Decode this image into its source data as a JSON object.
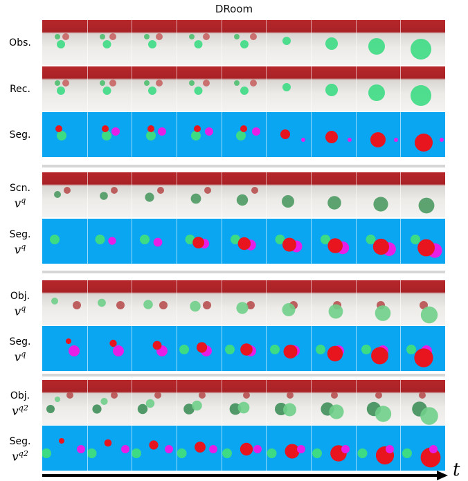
{
  "title": "DRoom",
  "time_label": "t",
  "rows": [
    {
      "key": "obs",
      "label": "Obs.",
      "sub": "",
      "sup": "",
      "kind": "rgb"
    },
    {
      "key": "rec",
      "label": "Rec.",
      "sub": "",
      "sup": "",
      "kind": "rgb"
    },
    {
      "key": "seg1",
      "label": "Seg.",
      "sub": "",
      "sup": "",
      "kind": "seg"
    },
    {
      "key": "scn",
      "label": "Scn.",
      "sub": "v",
      "sup": "q",
      "kind": "rgb"
    },
    {
      "key": "seg2",
      "label": "Seg.",
      "sub": "v",
      "sup": "q",
      "kind": "seg"
    },
    {
      "key": "obj",
      "label": "Obj.",
      "sub": "v",
      "sup": "q",
      "kind": "rgb"
    },
    {
      "key": "seg3",
      "label": "Seg.",
      "sub": "v",
      "sup": "q",
      "kind": "seg"
    },
    {
      "key": "obj2",
      "label": "Obj.",
      "sub": "v",
      "sup": "q2",
      "kind": "rgb"
    },
    {
      "key": "seg4",
      "label": "Seg.",
      "sub": "v",
      "sup": "q2",
      "kind": "seg"
    }
  ],
  "frame_count": 9,
  "colors": {
    "background_seg": "#0aa6f2",
    "green_object": "#3ddc84",
    "red_object": "#e8141e",
    "magenta_object": "#e61ee6",
    "wall": "#b02428",
    "floor": "#eeedea",
    "arrow": "#000000"
  }
}
